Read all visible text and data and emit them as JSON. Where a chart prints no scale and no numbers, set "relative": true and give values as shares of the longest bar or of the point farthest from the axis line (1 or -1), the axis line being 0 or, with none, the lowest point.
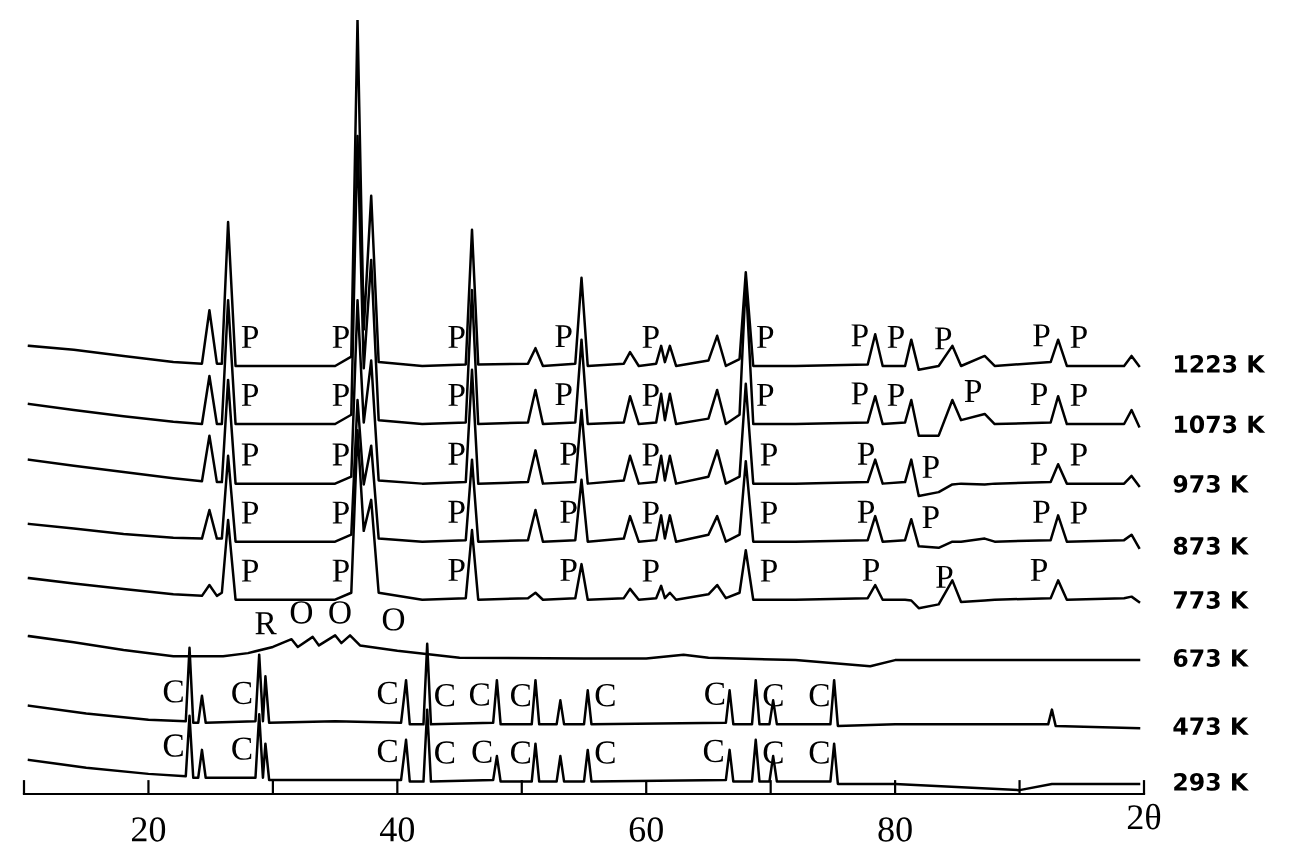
{
  "chart_data": {
    "type": "line",
    "relative": true,
    "legend": false,
    "xlim": [
      10,
      100
    ],
    "xticks": [
      {
        "value": 10,
        "label": null
      },
      20,
      {
        "value": 30,
        "label": null
      },
      40,
      {
        "value": 50,
        "label": null
      },
      60,
      {
        "value": 70,
        "label": null
      },
      80,
      {
        "value": 90,
        "label": null
      },
      {
        "value": 100,
        "label": null
      }
    ],
    "xlabel": "2θ",
    "series": [
      {
        "name": "1223 K",
        "color": "#000000",
        "x": [
          10.4,
          14,
          18,
          22,
          24.3,
          24.9,
          25.5,
          25.9,
          26.4,
          27,
          30,
          35,
          36.3,
          36.8,
          37.3,
          37.9,
          38.5,
          42,
          45.5,
          46.0,
          46.5,
          50.5,
          51.1,
          51.7,
          54.3,
          54.8,
          55.3,
          58.2,
          58.7,
          59.4,
          60.8,
          61.2,
          61.5,
          61.9,
          62.4,
          65.0,
          65.7,
          66.4,
          67.5,
          68.0,
          68.6,
          72,
          77.8,
          78.4,
          79,
          80.8,
          81.3,
          81.9,
          83.5,
          84.6,
          85.3,
          87.2,
          88,
          92.5,
          93.1,
          93.8,
          98.4,
          99,
          99.6
        ],
        "values": [
          0.579,
          0.574,
          0.566,
          0.558,
          0.556,
          0.625,
          0.556,
          0.556,
          0.739,
          0.553,
          0.553,
          0.553,
          0.565,
          1.0,
          0.6,
          0.773,
          0.558,
          0.553,
          0.555,
          0.729,
          0.555,
          0.556,
          0.576,
          0.553,
          0.556,
          0.667,
          0.553,
          0.556,
          0.571,
          0.553,
          0.556,
          0.579,
          0.558,
          0.579,
          0.553,
          0.56,
          0.592,
          0.553,
          0.562,
          0.674,
          0.553,
          0.553,
          0.555,
          0.594,
          0.553,
          0.553,
          0.587,
          0.548,
          0.553,
          0.579,
          0.553,
          0.566,
          0.553,
          0.558,
          0.587,
          0.553,
          0.553,
          0.566,
          0.553
        ]
      },
      {
        "name": "1073 K",
        "color": "#000000",
        "x": [
          10.4,
          14,
          18,
          22,
          24.3,
          24.9,
          25.5,
          25.9,
          26.4,
          27,
          30,
          35,
          36.3,
          36.8,
          37.3,
          37.9,
          38.5,
          42,
          45.5,
          46.0,
          46.5,
          50.5,
          51.1,
          51.7,
          54.3,
          54.8,
          55.3,
          58.2,
          58.7,
          59.4,
          60.8,
          61.2,
          61.5,
          61.9,
          62.4,
          65.0,
          65.7,
          66.4,
          67.5,
          68.0,
          68.6,
          72,
          77.8,
          78.4,
          79,
          80.8,
          81.3,
          81.9,
          83.5,
          84.6,
          85.3,
          87.2,
          88,
          92.5,
          93.1,
          93.8,
          98.4,
          99,
          99.6
        ],
        "values": [
          0.504,
          0.496,
          0.488,
          0.481,
          0.478,
          0.54,
          0.478,
          0.478,
          0.638,
          0.478,
          0.478,
          0.478,
          0.49,
          0.85,
          0.55,
          0.69,
          0.483,
          0.478,
          0.48,
          0.651,
          0.478,
          0.48,
          0.522,
          0.478,
          0.48,
          0.587,
          0.478,
          0.48,
          0.514,
          0.478,
          0.48,
          0.517,
          0.483,
          0.517,
          0.478,
          0.485,
          0.522,
          0.478,
          0.49,
          0.664,
          0.478,
          0.478,
          0.48,
          0.514,
          0.478,
          0.48,
          0.509,
          0.463,
          0.463,
          0.509,
          0.483,
          0.491,
          0.478,
          0.48,
          0.514,
          0.478,
          0.478,
          0.496,
          0.475
        ]
      },
      {
        "name": "973 K",
        "color": "#000000",
        "x": [
          10.4,
          14,
          18,
          22,
          24.3,
          24.9,
          25.5,
          25.9,
          26.4,
          27,
          30,
          35,
          36.3,
          36.8,
          37.3,
          37.9,
          38.5,
          42,
          45.5,
          46.0,
          46.5,
          50.5,
          51.1,
          51.7,
          54.3,
          54.8,
          55.3,
          58.2,
          58.7,
          59.4,
          60.8,
          61.2,
          61.5,
          61.9,
          62.4,
          65.0,
          65.7,
          66.4,
          67.5,
          68.0,
          68.6,
          72,
          77.8,
          78.4,
          79,
          80.8,
          81.3,
          81.9,
          83.5,
          84.6,
          85.3,
          87.2,
          88,
          92.5,
          93.1,
          93.8,
          98.4,
          99,
          99.6
        ],
        "values": [
          0.432,
          0.424,
          0.416,
          0.408,
          0.404,
          0.463,
          0.403,
          0.403,
          0.535,
          0.401,
          0.401,
          0.401,
          0.41,
          0.638,
          0.48,
          0.56,
          0.405,
          0.401,
          0.403,
          0.548,
          0.401,
          0.403,
          0.444,
          0.401,
          0.403,
          0.496,
          0.401,
          0.405,
          0.437,
          0.401,
          0.403,
          0.437,
          0.405,
          0.437,
          0.401,
          0.41,
          0.444,
          0.401,
          0.41,
          0.53,
          0.401,
          0.401,
          0.403,
          0.432,
          0.401,
          0.403,
          0.432,
          0.385,
          0.39,
          0.4,
          0.401,
          0.4,
          0.401,
          0.403,
          0.426,
          0.401,
          0.401,
          0.411,
          0.398
        ]
      },
      {
        "name": "873 K",
        "color": "#000000",
        "x": [
          10.4,
          14,
          18,
          22,
          24.3,
          24.9,
          25.5,
          25.9,
          26.4,
          27,
          30,
          35,
          36.3,
          36.8,
          37.3,
          37.9,
          38.5,
          42,
          45.5,
          46.0,
          46.5,
          50.5,
          51.1,
          51.7,
          54.3,
          54.8,
          55.3,
          58.2,
          58.7,
          59.4,
          60.8,
          61.2,
          61.5,
          61.9,
          62.4,
          65.0,
          65.7,
          66.4,
          67.5,
          68.0,
          68.6,
          72,
          77.8,
          78.4,
          79,
          80.8,
          81.3,
          81.9,
          83.5,
          84.6,
          85.3,
          87.2,
          88,
          92.5,
          93.1,
          93.8,
          98.4,
          99,
          99.6
        ],
        "values": [
          0.349,
          0.343,
          0.336,
          0.331,
          0.33,
          0.367,
          0.33,
          0.33,
          0.437,
          0.326,
          0.326,
          0.326,
          0.335,
          0.509,
          0.4,
          0.45,
          0.33,
          0.326,
          0.328,
          0.432,
          0.326,
          0.328,
          0.367,
          0.326,
          0.328,
          0.406,
          0.326,
          0.33,
          0.359,
          0.326,
          0.328,
          0.36,
          0.33,
          0.36,
          0.326,
          0.335,
          0.359,
          0.326,
          0.335,
          0.43,
          0.326,
          0.326,
          0.328,
          0.359,
          0.326,
          0.328,
          0.355,
          0.32,
          0.318,
          0.326,
          0.326,
          0.33,
          0.326,
          0.328,
          0.36,
          0.326,
          0.328,
          0.335,
          0.318
        ]
      },
      {
        "name": "773 K",
        "color": "#000000",
        "x": [
          10.4,
          14,
          18,
          22,
          24.3,
          24.9,
          25.5,
          25.9,
          26.4,
          27,
          30,
          35,
          36.3,
          36.8,
          37.3,
          37.9,
          38.5,
          42,
          45.5,
          46.0,
          46.5,
          50.5,
          51.1,
          51.7,
          54.3,
          54.8,
          55.3,
          58.2,
          58.7,
          59.4,
          60.8,
          61.2,
          61.5,
          61.9,
          62.4,
          65.0,
          65.7,
          66.4,
          67.5,
          68.0,
          68.6,
          72,
          77.8,
          78.4,
          79,
          80.8,
          81.3,
          81.9,
          83.5,
          84.6,
          85.3,
          87.2,
          88,
          92.5,
          93.1,
          93.8,
          98.4,
          99,
          99.6
        ],
        "values": [
          0.279,
          0.272,
          0.265,
          0.258,
          0.256,
          0.27,
          0.256,
          0.26,
          0.354,
          0.251,
          0.251,
          0.251,
          0.26,
          0.47,
          0.34,
          0.38,
          0.26,
          0.251,
          0.253,
          0.341,
          0.251,
          0.253,
          0.26,
          0.251,
          0.253,
          0.297,
          0.251,
          0.253,
          0.265,
          0.251,
          0.253,
          0.269,
          0.253,
          0.26,
          0.251,
          0.258,
          0.27,
          0.253,
          0.26,
          0.315,
          0.251,
          0.251,
          0.253,
          0.27,
          0.251,
          0.251,
          0.25,
          0.24,
          0.245,
          0.276,
          0.248,
          0.25,
          0.251,
          0.253,
          0.276,
          0.251,
          0.253,
          0.255,
          0.248
        ]
      },
      {
        "name": "673 K",
        "color": "#000000",
        "x": [
          10.4,
          14,
          18,
          22,
          26,
          28,
          30,
          31.5,
          32,
          33.2,
          33.7,
          35,
          35.5,
          36.2,
          37,
          40,
          45,
          55,
          60,
          63,
          65,
          72,
          78,
          80,
          90,
          99.6
        ],
        "values": [
          0.204,
          0.196,
          0.186,
          0.178,
          0.178,
          0.182,
          0.19,
          0.2,
          0.19,
          0.203,
          0.192,
          0.205,
          0.195,
          0.205,
          0.192,
          0.185,
          0.176,
          0.175,
          0.175,
          0.18,
          0.176,
          0.173,
          0.165,
          0.173,
          0.173,
          0.173
        ]
      },
      {
        "name": "473 K",
        "color": "#000000",
        "x": [
          10.4,
          15,
          20,
          23.0,
          23.3,
          23.6,
          24.0,
          24.3,
          24.6,
          28.6,
          28.9,
          29.2,
          29.4,
          29.7,
          35,
          40.3,
          40.7,
          41.0,
          42.1,
          42.4,
          42.7,
          47.7,
          48.0,
          48.3,
          50.8,
          51.1,
          51.4,
          52.8,
          53.1,
          53.4,
          55.0,
          55.3,
          55.6,
          66.4,
          66.7,
          67.0,
          68.5,
          68.8,
          69.1,
          69.9,
          70.2,
          70.5,
          74.8,
          75.1,
          75.4,
          80,
          92.3,
          92.6,
          92.9,
          99.6
        ],
        "values": [
          0.114,
          0.104,
          0.096,
          0.094,
          0.189,
          0.092,
          0.092,
          0.127,
          0.092,
          0.094,
          0.18,
          0.094,
          0.152,
          0.092,
          0.094,
          0.092,
          0.147,
          0.09,
          0.09,
          0.194,
          0.09,
          0.092,
          0.147,
          0.09,
          0.09,
          0.147,
          0.09,
          0.09,
          0.121,
          0.09,
          0.09,
          0.134,
          0.09,
          0.092,
          0.134,
          0.09,
          0.09,
          0.147,
          0.09,
          0.09,
          0.121,
          0.09,
          0.09,
          0.147,
          0.088,
          0.09,
          0.09,
          0.109,
          0.088,
          0.085
        ]
      },
      {
        "name": "293 K",
        "color": "#000000",
        "x": [
          10.4,
          15,
          20,
          23.0,
          23.3,
          23.6,
          24.0,
          24.3,
          24.6,
          28.6,
          28.9,
          29.2,
          29.4,
          29.7,
          35,
          40.3,
          40.7,
          41.0,
          42.1,
          42.4,
          42.7,
          47.7,
          48.0,
          48.3,
          50.8,
          51.1,
          51.4,
          52.8,
          53.1,
          53.4,
          55.0,
          55.3,
          55.6,
          66.4,
          66.7,
          67.0,
          68.5,
          68.8,
          69.1,
          69.9,
          70.2,
          70.5,
          74.8,
          75.1,
          75.4,
          80,
          90,
          92.6,
          99.6
        ],
        "values": [
          0.044,
          0.034,
          0.026,
          0.023,
          0.101,
          0.021,
          0.021,
          0.057,
          0.021,
          0.021,
          0.103,
          0.021,
          0.065,
          0.018,
          0.018,
          0.018,
          0.07,
          0.016,
          0.016,
          0.109,
          0.016,
          0.018,
          0.049,
          0.016,
          0.016,
          0.065,
          0.016,
          0.016,
          0.049,
          0.016,
          0.016,
          0.057,
          0.016,
          0.018,
          0.057,
          0.016,
          0.016,
          0.07,
          0.016,
          0.016,
          0.049,
          0.016,
          0.016,
          0.065,
          0.013,
          0.013,
          0.005,
          0.013,
          0.013
        ]
      }
    ],
    "annotations": [
      {
        "text": "P",
        "x": 27.2,
        "y": 0.553
      },
      {
        "text": "P",
        "x": 34.5,
        "y": 0.553
      },
      {
        "text": "P",
        "x": 43.8,
        "y": 0.553
      },
      {
        "text": "P",
        "x": 52.4,
        "y": 0.554
      },
      {
        "text": "P",
        "x": 59.4,
        "y": 0.553
      },
      {
        "text": "P",
        "x": 68.6,
        "y": 0.553
      },
      {
        "text": "P",
        "x": 76.2,
        "y": 0.555
      },
      {
        "text": "P",
        "x": 79.1,
        "y": 0.553
      },
      {
        "text": "P",
        "x": 82.9,
        "y": 0.551
      },
      {
        "text": "P",
        "x": 90.8,
        "y": 0.555
      },
      {
        "text": "P",
        "x": 93.8,
        "y": 0.553
      },
      {
        "text": "P",
        "x": 27.2,
        "y": 0.478
      },
      {
        "text": "P",
        "x": 34.5,
        "y": 0.478
      },
      {
        "text": "P",
        "x": 43.8,
        "y": 0.478
      },
      {
        "text": "P",
        "x": 52.4,
        "y": 0.479
      },
      {
        "text": "P",
        "x": 59.4,
        "y": 0.478
      },
      {
        "text": "P",
        "x": 68.6,
        "y": 0.478
      },
      {
        "text": "P",
        "x": 76.2,
        "y": 0.48
      },
      {
        "text": "P",
        "x": 79.1,
        "y": 0.478
      },
      {
        "text": "P",
        "x": 85.3,
        "y": 0.483
      },
      {
        "text": "P",
        "x": 90.6,
        "y": 0.479
      },
      {
        "text": "P",
        "x": 93.8,
        "y": 0.478
      },
      {
        "text": "P",
        "x": 27.2,
        "y": 0.401
      },
      {
        "text": "P",
        "x": 34.5,
        "y": 0.401
      },
      {
        "text": "P",
        "x": 43.8,
        "y": 0.402
      },
      {
        "text": "P",
        "x": 52.8,
        "y": 0.402
      },
      {
        "text": "P",
        "x": 59.4,
        "y": 0.401
      },
      {
        "text": "P",
        "x": 68.9,
        "y": 0.401
      },
      {
        "text": "P",
        "x": 76.7,
        "y": 0.402
      },
      {
        "text": "P",
        "x": 81.9,
        "y": 0.385
      },
      {
        "text": "P",
        "x": 90.6,
        "y": 0.402
      },
      {
        "text": "P",
        "x": 93.8,
        "y": 0.401
      },
      {
        "text": "P",
        "x": 27.2,
        "y": 0.326
      },
      {
        "text": "P",
        "x": 34.5,
        "y": 0.326
      },
      {
        "text": "P",
        "x": 43.8,
        "y": 0.327
      },
      {
        "text": "P",
        "x": 52.8,
        "y": 0.327
      },
      {
        "text": "P",
        "x": 59.4,
        "y": 0.326
      },
      {
        "text": "P",
        "x": 68.9,
        "y": 0.326
      },
      {
        "text": "P",
        "x": 76.7,
        "y": 0.327
      },
      {
        "text": "P",
        "x": 81.9,
        "y": 0.32
      },
      {
        "text": "P",
        "x": 90.8,
        "y": 0.327
      },
      {
        "text": "P",
        "x": 93.8,
        "y": 0.326
      },
      {
        "text": "P",
        "x": 27.2,
        "y": 0.251
      },
      {
        "text": "P",
        "x": 34.5,
        "y": 0.251
      },
      {
        "text": "P",
        "x": 43.8,
        "y": 0.252
      },
      {
        "text": "P",
        "x": 52.8,
        "y": 0.252
      },
      {
        "text": "P",
        "x": 59.4,
        "y": 0.251
      },
      {
        "text": "P",
        "x": 68.9,
        "y": 0.251
      },
      {
        "text": "P",
        "x": 77.1,
        "y": 0.252
      },
      {
        "text": "P",
        "x": 83.0,
        "y": 0.243
      },
      {
        "text": "P",
        "x": 90.6,
        "y": 0.252
      },
      {
        "text": "R",
        "x": 28.3,
        "y": 0.183
      },
      {
        "text": "O",
        "x": 31.1,
        "y": 0.197
      },
      {
        "text": "O",
        "x": 34.2,
        "y": 0.197
      },
      {
        "text": "O",
        "x": 38.5,
        "y": 0.188
      },
      {
        "text": "C",
        "x": 20.9,
        "y": 0.095
      },
      {
        "text": "C",
        "x": 26.4,
        "y": 0.093
      },
      {
        "text": "C",
        "x": 38.1,
        "y": 0.093
      },
      {
        "text": "C",
        "x": 42.7,
        "y": 0.09
      },
      {
        "text": "C",
        "x": 45.5,
        "y": 0.091
      },
      {
        "text": "C",
        "x": 48.8,
        "y": 0.09
      },
      {
        "text": "C",
        "x": 55.6,
        "y": 0.09
      },
      {
        "text": "C",
        "x": 64.4,
        "y": 0.092
      },
      {
        "text": "C",
        "x": 69.1,
        "y": 0.09
      },
      {
        "text": "C",
        "x": 72.8,
        "y": 0.09
      },
      {
        "text": "C",
        "x": 20.9,
        "y": 0.025
      },
      {
        "text": "C",
        "x": 26.4,
        "y": 0.021
      },
      {
        "text": "C",
        "x": 38.1,
        "y": 0.018
      },
      {
        "text": "C",
        "x": 42.7,
        "y": 0.016
      },
      {
        "text": "C",
        "x": 45.7,
        "y": 0.017
      },
      {
        "text": "C",
        "x": 48.8,
        "y": 0.016
      },
      {
        "text": "C",
        "x": 55.6,
        "y": 0.016
      },
      {
        "text": "C",
        "x": 64.3,
        "y": 0.018
      },
      {
        "text": "C",
        "x": 69.1,
        "y": 0.016
      },
      {
        "text": "C",
        "x": 72.8,
        "y": 0.016
      }
    ]
  }
}
